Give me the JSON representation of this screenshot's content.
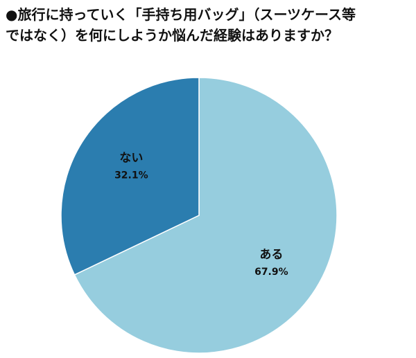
{
  "title": {
    "line1": "●旅行に持っていく「手持ち用バッグ」（スーツケース等",
    "line2": "ではなく）を何にしようか悩んだ経験はありますか？"
  },
  "chart_data": {
    "type": "pie",
    "slices": [
      {
        "label": "ある",
        "value": 67.9,
        "display": "67.9%",
        "color": "#96CDDE"
      },
      {
        "label": "ない",
        "value": 32.1,
        "display": "32.1%",
        "color": "#2B7DAF"
      }
    ],
    "start": "12 o'clock",
    "direction": "clockwise",
    "stroke_color": "#ffffff"
  }
}
